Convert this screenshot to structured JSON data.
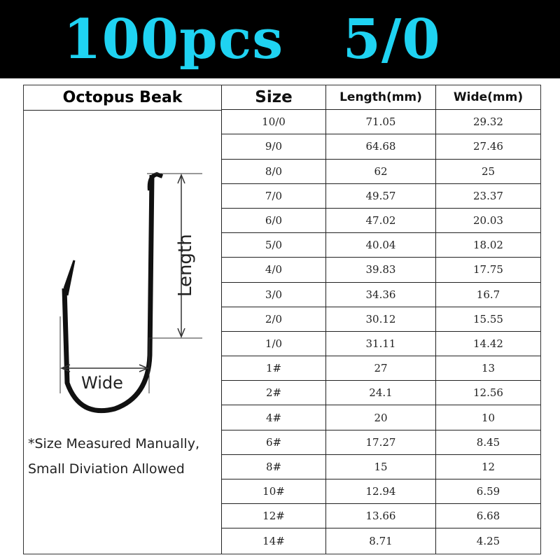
{
  "banner": {
    "title": "100pcs   5/0",
    "title_color": "#1fd3f2"
  },
  "table": {
    "product": "Octopus Beak",
    "headers": [
      "Size",
      "Length(mm)",
      "Wide(mm)"
    ],
    "rows": [
      [
        "10/0",
        "71.05",
        "29.32"
      ],
      [
        "9/0",
        "64.68",
        "27.46"
      ],
      [
        "8/0",
        "62",
        "25"
      ],
      [
        "7/0",
        "49.57",
        "23.37"
      ],
      [
        "6/0",
        "47.02",
        "20.03"
      ],
      [
        "5/0",
        "40.04",
        "18.02"
      ],
      [
        "4/0",
        "39.83",
        "17.75"
      ],
      [
        "3/0",
        "34.36",
        "16.7"
      ],
      [
        "2/0",
        "30.12",
        "15.55"
      ],
      [
        "1/0",
        "31.11",
        "14.42"
      ],
      [
        "1#",
        "27",
        "13"
      ],
      [
        "2#",
        "24.1",
        "12.56"
      ],
      [
        "4#",
        "20",
        "10"
      ],
      [
        "6#",
        "17.27",
        "8.45"
      ],
      [
        "8#",
        "15",
        "12"
      ],
      [
        "10#",
        "12.94",
        "6.59"
      ],
      [
        "12#",
        "13.66",
        "6.68"
      ],
      [
        "14#",
        "8.71",
        "4.25"
      ]
    ]
  },
  "diagram": {
    "length_label": "Length",
    "wide_label": "Wide",
    "icon": "fish-hook-icon"
  },
  "note": {
    "line1": "*Size Measured Manually,",
    "line2": "Small Diviation Allowed"
  }
}
